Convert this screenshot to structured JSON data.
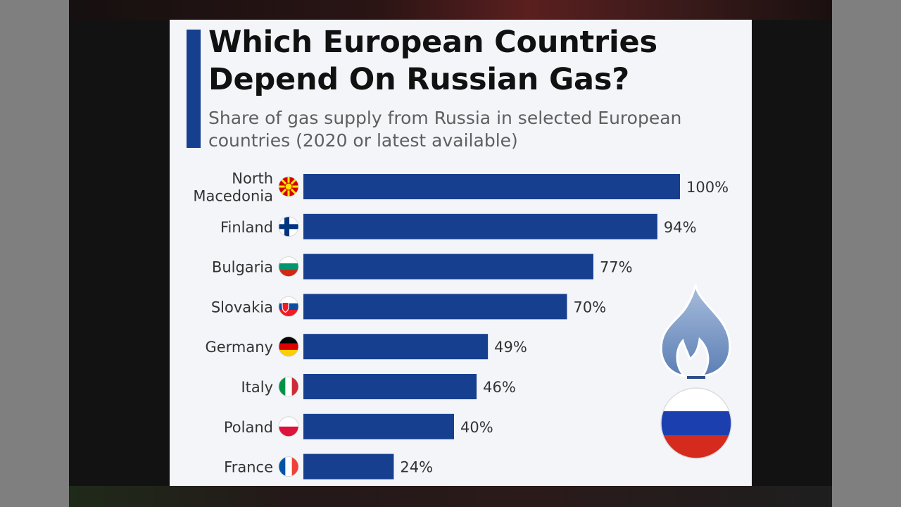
{
  "title": "Which European Countries Depend On Russian Gas?",
  "subtitle": "Share of gas supply from Russia in selected European countries (2020 or latest available)",
  "colors": {
    "bar": "#173f8f",
    "accent": "#173f8f",
    "label": "#333333"
  },
  "chart_data": {
    "type": "bar",
    "orientation": "horizontal",
    "categories": [
      [
        "North",
        "Macedonia"
      ],
      [
        "Finland"
      ],
      [
        "Bulgaria"
      ],
      [
        "Slovakia"
      ],
      [
        "Germany"
      ],
      [
        "Italy"
      ],
      [
        "Poland"
      ],
      [
        "France"
      ]
    ],
    "values": [
      100,
      94,
      77,
      70,
      49,
      46,
      40,
      24
    ],
    "value_labels": [
      "100%",
      "94%",
      "77%",
      "70%",
      "49%",
      "46%",
      "40%",
      "24%"
    ],
    "flags": [
      "north-macedonia-flag-icon",
      "finland-flag-icon",
      "bulgaria-flag-icon",
      "slovakia-flag-icon",
      "germany-flag-icon",
      "italy-flag-icon",
      "poland-flag-icon",
      "france-flag-icon"
    ],
    "xlim": [
      0,
      100
    ],
    "grid": false,
    "legend": "none"
  },
  "decorations": [
    "flame-icon",
    "russia-flag-icon"
  ]
}
